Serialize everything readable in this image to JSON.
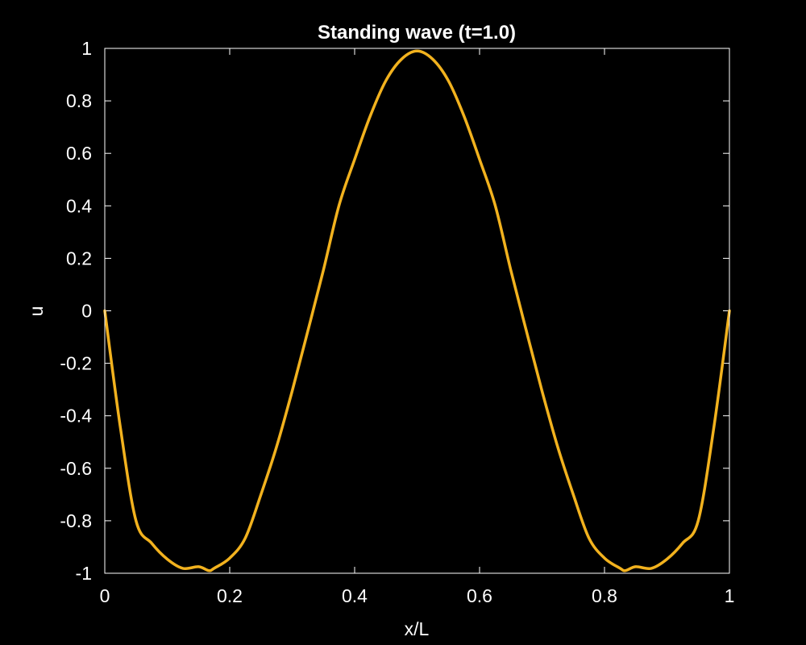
{
  "colors": {
    "background": "#000000",
    "foreground": "#ffffff",
    "line": "#f2b21e"
  },
  "chart_data": {
    "type": "line",
    "title": "Standing wave (t=1.0)",
    "xlabel": "x/L",
    "ylabel": "u",
    "xlim": [
      0,
      1
    ],
    "ylim": [
      -1,
      1
    ],
    "grid": false,
    "xticks": [
      0,
      0.2,
      0.4,
      0.6,
      0.8,
      1
    ],
    "xtick_labels": [
      "0",
      "0.2",
      "0.4",
      "0.6",
      "0.8",
      "1"
    ],
    "yticks": [
      -1,
      -0.8,
      -0.6,
      -0.4,
      -0.2,
      0,
      0.2,
      0.4,
      0.6,
      0.8,
      1
    ],
    "ytick_labels": [
      "-1",
      "-0.8",
      "-0.6",
      "-0.4",
      "-0.2",
      "0",
      "0.2",
      "0.4",
      "0.6",
      "0.8",
      "1"
    ],
    "series": [
      {
        "x": [
          0,
          0.025,
          0.05,
          0.075,
          0.1,
          0.125,
          0.15,
          0.1667,
          0.175,
          0.2,
          0.225,
          0.25,
          0.275,
          0.3,
          0.325,
          0.35,
          0.375,
          0.4,
          0.425,
          0.45,
          0.475,
          0.5,
          0.525,
          0.55,
          0.575,
          0.6,
          0.625,
          0.65,
          0.675,
          0.7,
          0.725,
          0.75,
          0.775,
          0.8,
          0.825,
          0.8333,
          0.85,
          0.875,
          0.9,
          0.925,
          0.95,
          0.975,
          1
        ],
        "y": [
          0,
          -0.4455,
          -0.8003,
          -0.8855,
          -0.9462,
          -0.9813,
          -0.9752,
          -0.99,
          -0.9812,
          -0.9423,
          -0.8655,
          -0.7001,
          -0.5181,
          -0.3057,
          -0.0775,
          0.155,
          0.4016,
          0.5769,
          0.7425,
          0.8769,
          0.9587,
          0.99,
          0.9587,
          0.8769,
          0.7425,
          0.5769,
          0.4016,
          0.155,
          -0.0775,
          -0.3057,
          -0.5181,
          -0.7001,
          -0.8655,
          -0.9423,
          -0.9812,
          -0.99,
          -0.9752,
          -0.9813,
          -0.9462,
          -0.8855,
          -0.8003,
          -0.4455,
          0
        ]
      }
    ]
  }
}
